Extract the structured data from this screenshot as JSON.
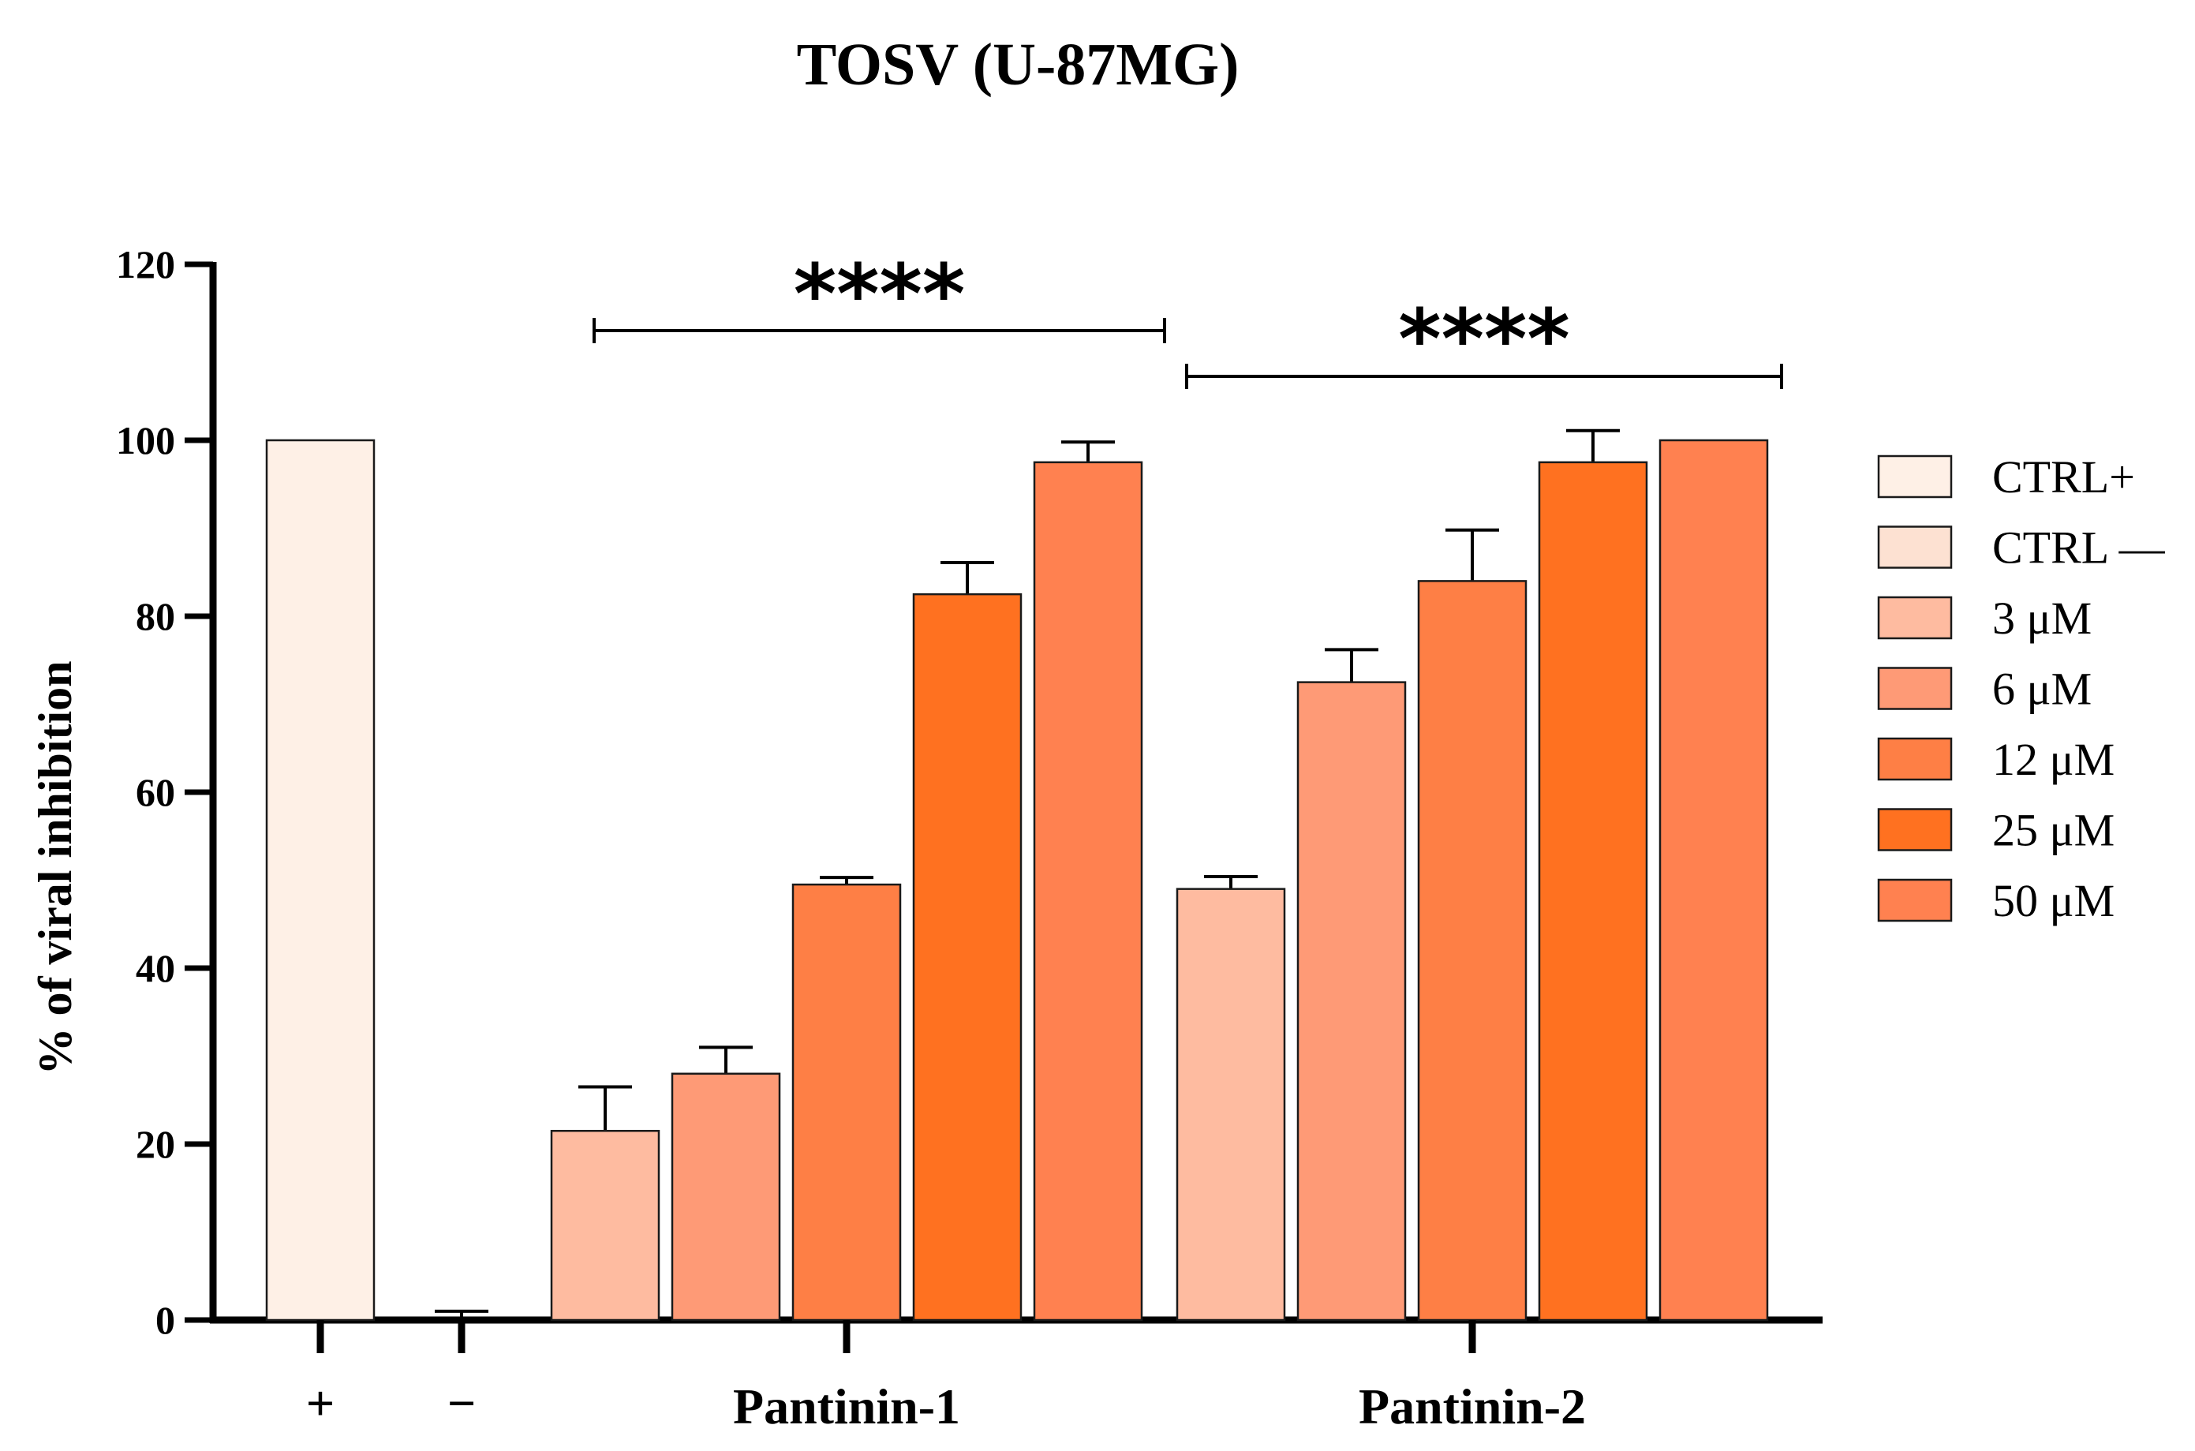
{
  "chart_data": {
    "type": "bar",
    "title": "TOSV (U-87MG)",
    "xlabel": "",
    "ylabel": "% of viral inhibition",
    "ylim": [
      0,
      120
    ],
    "yticks": [
      "0",
      "20",
      "40",
      "60",
      "80",
      "100",
      "120"
    ],
    "controls": [
      {
        "key": "+",
        "series": "CTRL+",
        "value": 100,
        "error": 0
      },
      {
        "key": "−",
        "series": "CTRL —",
        "value": 0,
        "error": 1
      }
    ],
    "groups": [
      {
        "name": "Pantinin-1",
        "significance": "****",
        "bars": [
          {
            "series": "3 μM",
            "value": 21.5,
            "error": 5
          },
          {
            "series": "6 μM",
            "value": 28,
            "error": 3
          },
          {
            "series": "12 μM",
            "value": 49.5,
            "error": 0.8
          },
          {
            "series": "25 μM",
            "value": 82.5,
            "error": 3.6
          },
          {
            "series": "50 μM",
            "value": 97.5,
            "error": 2.3
          }
        ]
      },
      {
        "name": "Pantinin-2",
        "significance": "****",
        "bars": [
          {
            "series": "3 μM",
            "value": 49,
            "error": 1.4
          },
          {
            "series": "6 μM",
            "value": 72.5,
            "error": 3.7
          },
          {
            "series": "12 μM",
            "value": 84,
            "error": 5.8
          },
          {
            "series": "25 μM",
            "value": 97.5,
            "error": 3.6
          },
          {
            "series": "50 μM",
            "value": 100,
            "error": 0
          }
        ]
      }
    ],
    "legend": [
      {
        "label": "CTRL+",
        "color": "#FEF0E6"
      },
      {
        "label": "CTRL —",
        "color": "#FDE1D2"
      },
      {
        "label": "3 μM",
        "color": "#FEBBA0"
      },
      {
        "label": "6 μM",
        "color": "#FE9A76"
      },
      {
        "label": "12 μM",
        "color": "#FE7F45"
      },
      {
        "label": "25 μM",
        "color": "#FF7120"
      },
      {
        "label": "50 μM",
        "color": "#FF8150"
      }
    ],
    "legend_position": "right"
  }
}
